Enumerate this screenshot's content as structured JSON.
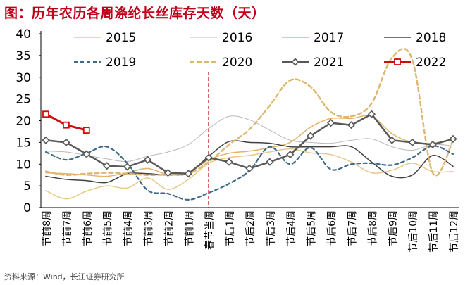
{
  "title": "图：历年农历各周涤纶长丝库存天数（天）",
  "source": "资料来源：Wind，长江证券研究所",
  "chart_data": {
    "type": "line",
    "title": "图：历年农历各周涤纶长丝库存天数（天）",
    "xlabel": "",
    "ylabel": "",
    "ylim": [
      0,
      40
    ],
    "yticks": [
      0,
      5,
      10,
      15,
      20,
      25,
      30,
      35,
      40
    ],
    "categories": [
      "节前8周",
      "节前7周",
      "节前6周",
      "节前5周",
      "节前4周",
      "节前3周",
      "节前2周",
      "节前1周",
      "春节当周",
      "节后1周",
      "节后2周",
      "节后3周",
      "节后4周",
      "节后5周",
      "节后6周",
      "节后7周",
      "节后8周",
      "节后9周",
      "节后10周",
      "节后11周",
      "节后12周"
    ],
    "holiday_marker": "春节当周",
    "legend_position": "top",
    "series": [
      {
        "name": "2015",
        "color": "#e8c98a",
        "dash": "solid",
        "width": 1.5,
        "marker": "none",
        "values": [
          3.9,
          2.0,
          3.8,
          5.0,
          4.5,
          6.8,
          4.2,
          6.5,
          10.2,
          11.5,
          12.0,
          12.8,
          13.5,
          12.6,
          12.2,
          10.5,
          8.0,
          8.6,
          10.2,
          8.3,
          8.3
        ]
      },
      {
        "name": "2016",
        "color": "#b9b9b9",
        "dash": "solid",
        "width": 1.0,
        "marker": "none",
        "values": [
          13.0,
          12.8,
          12.0,
          11.2,
          10.6,
          11.8,
          12.8,
          14.5,
          18.2,
          21.0,
          20.2,
          17.8,
          15.5,
          15.0,
          14.8,
          15.5,
          15.8,
          14.0,
          13.2,
          14.5,
          14.2
        ]
      },
      {
        "name": "2017",
        "color": "#e3b46e",
        "dash": "solid",
        "width": 1.5,
        "marker": "none",
        "values": [
          8.0,
          7.8,
          7.5,
          7.2,
          8.0,
          9.0,
          7.6,
          8.0,
          11.0,
          12.5,
          13.0,
          13.8,
          15.0,
          18.5,
          20.5,
          20.5,
          21.0,
          17.0,
          15.0,
          14.8,
          15.8
        ]
      },
      {
        "name": "2018",
        "color": "#404040",
        "dash": "solid",
        "width": 1.5,
        "marker": "none",
        "values": [
          7.2,
          6.5,
          6.2,
          5.8,
          7.8,
          7.8,
          7.5,
          8.0,
          11.8,
          15.2,
          15.0,
          14.8,
          14.0,
          14.0,
          14.0,
          14.0,
          10.5,
          7.2,
          7.5,
          12.0,
          9.5
        ]
      },
      {
        "name": "2019",
        "color": "#3f6b8a",
        "dash": "5,4",
        "width": 2.2,
        "marker": "none",
        "values": [
          12.8,
          11.0,
          12.5,
          14.0,
          10.2,
          4.0,
          3.2,
          1.8,
          3.4,
          5.5,
          8.5,
          14.0,
          10.0,
          13.8,
          8.8,
          10.0,
          10.2,
          9.8,
          11.5,
          14.2,
          12.3
        ]
      },
      {
        "name": "2020",
        "color": "#ddb76d",
        "dash": "6,4",
        "width": 2.4,
        "marker": "none",
        "values": [
          8.3,
          7.5,
          7.8,
          8.0,
          7.8,
          7.5,
          7.6,
          7.8,
          10.5,
          14.5,
          18.0,
          23.5,
          29.3,
          27.8,
          22.0,
          21.0,
          24.0,
          34.5,
          34.0,
          8.0,
          15.5
        ]
      },
      {
        "name": "2021",
        "color": "#595959",
        "dash": "solid",
        "width": 2.5,
        "marker": "diamond",
        "values": [
          15.5,
          15.0,
          12.3,
          9.6,
          9.4,
          11.0,
          8.0,
          7.8,
          11.5,
          10.5,
          9.0,
          10.5,
          12.2,
          16.5,
          19.5,
          19.0,
          21.5,
          15.5,
          15.0,
          14.5,
          15.8
        ]
      },
      {
        "name": "2022",
        "color": "#d40b0b",
        "dash": "solid",
        "width": 3.0,
        "marker": "square",
        "values": [
          21.5,
          19.0,
          17.8,
          null,
          null,
          null,
          null,
          null,
          null,
          null,
          null,
          null,
          null,
          null,
          null,
          null,
          null,
          null,
          null,
          null,
          null
        ]
      }
    ]
  }
}
